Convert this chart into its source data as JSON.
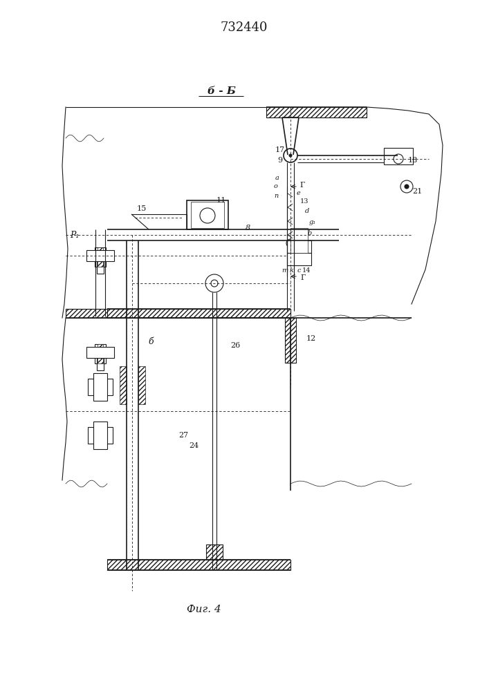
{
  "title": "732440",
  "bb_label": "б - Б",
  "fig_label": "Фиг. 4",
  "bg": "#ffffff",
  "lc": "#1a1a1a"
}
